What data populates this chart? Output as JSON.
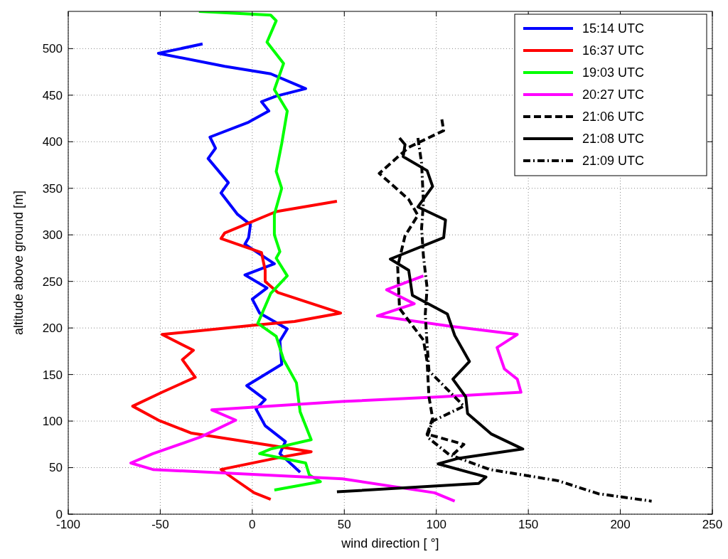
{
  "chart_data": {
    "type": "line",
    "xlabel": "wind direction [ °]",
    "ylabel": "altitude above ground [m]",
    "xlim": [
      -100,
      250
    ],
    "xticks": [
      -100,
      -50,
      0,
      50,
      100,
      150,
      200,
      250
    ],
    "ylim": [
      0,
      540
    ],
    "yticks": [
      0,
      50,
      100,
      150,
      200,
      250,
      300,
      350,
      400,
      450,
      500
    ],
    "grid": true,
    "legend": "top right",
    "series": [
      {
        "name": "15:14 UTC",
        "color": "#0000ff",
        "line_style": "solid",
        "x": [
          -27,
          -51,
          -15,
          10,
          29,
          13,
          5,
          9,
          -2,
          -23,
          -20,
          -24,
          -13,
          -17,
          -8,
          -1,
          -2,
          -4,
          12,
          -4,
          8,
          0,
          4,
          19,
          15,
          16,
          -3,
          7,
          2,
          7,
          18,
          15,
          26
        ],
        "values": [
          505,
          495,
          481,
          473,
          457,
          449,
          443,
          433,
          421,
          405,
          393,
          382,
          356,
          345,
          322,
          311,
          297,
          290,
          269,
          257,
          243,
          231,
          216,
          199,
          186,
          161,
          138,
          123,
          113,
          95,
          78,
          65,
          45
        ]
      },
      {
        "name": "16:37 UTC",
        "color": "#ff0000",
        "line_style": "solid",
        "x": [
          46,
          13,
          -15,
          -17,
          5,
          7,
          7,
          14,
          48,
          23,
          1,
          -49,
          -32,
          -38,
          -31,
          -49,
          -65,
          -51,
          -33,
          13,
          32,
          15,
          -17,
          -10,
          1,
          10
        ],
        "values": [
          336,
          325,
          302,
          296,
          281,
          262,
          250,
          238,
          216,
          207,
          203,
          193,
          176,
          166,
          147,
          131,
          116,
          101,
          87,
          73,
          67,
          61,
          48,
          38,
          23,
          16
        ]
      },
      {
        "name": "19:03 UTC",
        "color": "#00ff00",
        "line_style": "solid",
        "x": [
          -29,
          10,
          13,
          8,
          17,
          12,
          19,
          16,
          13,
          16,
          12,
          12,
          15,
          13,
          19,
          10,
          3,
          13,
          17,
          24,
          26,
          32,
          10,
          4,
          29,
          31,
          37,
          12
        ],
        "values": [
          540,
          536,
          530,
          507,
          484,
          456,
          433,
          398,
          368,
          350,
          322,
          300,
          282,
          275,
          256,
          237,
          205,
          191,
          166,
          141,
          110,
          80,
          70,
          65,
          55,
          42,
          35,
          26
        ]
      },
      {
        "name": "20:27 UTC",
        "color": "#ff00ff",
        "line_style": "solid",
        "x": [
          93,
          73,
          88,
          68,
          107,
          144,
          133,
          137,
          144,
          146,
          102,
          49,
          -22,
          -9,
          -28,
          -54,
          -66,
          -54,
          49,
          99,
          110
        ],
        "values": [
          256,
          241,
          226,
          213,
          202,
          193,
          179,
          156,
          145,
          131,
          126,
          121,
          112,
          101,
          83,
          65,
          55,
          48,
          38,
          23,
          14
        ]
      },
      {
        "name": "21:06 UTC",
        "color": "#000000",
        "line_style": "dashed",
        "x": [
          103,
          104,
          85,
          69,
          85,
          90,
          83,
          79,
          80,
          93,
          95,
          96,
          98,
          95,
          115,
          109
        ],
        "values": [
          424,
          412,
          394,
          366,
          338,
          321,
          299,
          266,
          221,
          187,
          164,
          126,
          103,
          86,
          75,
          64
        ]
      },
      {
        "name": "21:08 UTC",
        "color": "#000000",
        "line_style": "solid",
        "x": [
          80,
          83,
          82,
          95,
          98,
          90,
          105,
          104,
          75,
          85,
          87,
          106,
          110,
          118,
          109,
          116,
          117,
          130,
          147,
          112,
          101,
          127,
          123,
          46
        ],
        "values": [
          404,
          397,
          384,
          369,
          352,
          330,
          316,
          297,
          274,
          262,
          235,
          215,
          192,
          164,
          145,
          126,
          108,
          86,
          70,
          60,
          54,
          40,
          33,
          24
        ]
      },
      {
        "name": "21:09 UTC",
        "color": "#000000",
        "line_style": "dashdot",
        "x": [
          90,
          92,
          93,
          92,
          93,
          95,
          94,
          95,
          96,
          115,
          98,
          95,
          107,
          129,
          166,
          188,
          217
        ],
        "values": [
          404,
          377,
          335,
          307,
          277,
          243,
          215,
          182,
          154,
          116,
          100,
          83,
          64,
          48,
          36,
          22,
          14
        ]
      }
    ]
  }
}
